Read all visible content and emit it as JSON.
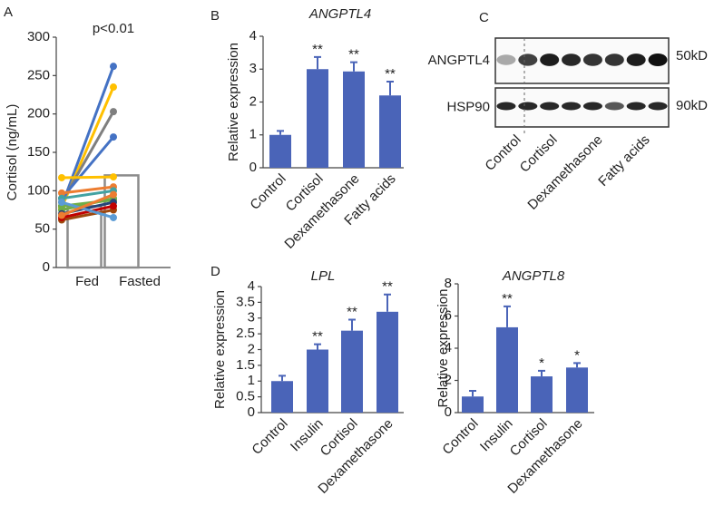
{
  "panel_labels": [
    "A",
    "B",
    "C",
    "D"
  ],
  "chart_data": [
    {
      "type": "paired",
      "annotation": "p<0.01",
      "y_label": "Cortisol (ng/mL)",
      "categories": [
        "Fed",
        "Fasted"
      ],
      "means": [
        80,
        120
      ],
      "bar_color": "#8c8c8c",
      "ylim": [
        0,
        300
      ],
      "yticks": [
        0,
        50,
        100,
        150,
        200,
        250,
        300
      ],
      "series": [
        {
          "color": "#4472c4",
          "values": [
            80,
            262
          ]
        },
        {
          "color": "#ffc000",
          "values": [
            78,
            235
          ]
        },
        {
          "color": "#7f7f7f",
          "values": [
            85,
            203
          ]
        },
        {
          "color": "#4472c4",
          "values": [
            90,
            170
          ]
        },
        {
          "color": "#ffc000",
          "values": [
            117,
            118
          ]
        },
        {
          "color": "#ed7d31",
          "values": [
            97,
            105
          ]
        },
        {
          "color": "#43a2a2",
          "values": [
            90,
            100
          ]
        },
        {
          "color": "#70ad47",
          "values": [
            80,
            88
          ]
        },
        {
          "color": "#70ad47",
          "values": [
            75,
            90
          ]
        },
        {
          "color": "#264478",
          "values": [
            70,
            85
          ]
        },
        {
          "color": "#9e480e",
          "values": [
            62,
            75
          ]
        },
        {
          "color": "#c00000",
          "values": [
            65,
            80
          ]
        },
        {
          "color": "#5b9bd5",
          "values": [
            85,
            65
          ]
        },
        {
          "color": "#ed7d31",
          "values": [
            68,
            95
          ]
        }
      ]
    },
    {
      "type": "bar",
      "title": "ANGPTL4",
      "y_label": "Relative expression",
      "color": "#4a64b8",
      "categories": [
        "Control",
        "Cortisol",
        "Dexamethasone",
        "Fatty acids"
      ],
      "values": [
        1,
        3,
        2.93,
        2.2
      ],
      "errors": [
        0.12,
        0.37,
        0.28,
        0.42
      ],
      "significance": [
        null,
        "**",
        "**",
        "**"
      ],
      "ylim": [
        0,
        4
      ],
      "yticks": [
        0,
        1,
        2,
        3,
        4
      ]
    },
    {
      "type": "bar",
      "title": "LPL",
      "y_label": "Relative expression",
      "color": "#4a64b8",
      "categories": [
        "Control",
        "Insulin",
        "Cortisol",
        "Dexamethasone"
      ],
      "values": [
        1,
        2,
        2.6,
        3.2
      ],
      "errors": [
        0.17,
        0.17,
        0.35,
        0.55
      ],
      "significance": [
        null,
        "**",
        "**",
        "**"
      ],
      "ylim": [
        0,
        4
      ],
      "yticks": [
        0,
        0.5,
        1,
        1.5,
        2,
        2.5,
        3,
        3.5,
        4
      ]
    },
    {
      "type": "bar",
      "title": "ANGPTL8",
      "y_label": "Relative expression",
      "color": "#4a64b8",
      "categories": [
        "Control",
        "Insulin",
        "Cortisol",
        "Dexamethasone"
      ],
      "values": [
        1,
        5.3,
        2.25,
        2.8
      ],
      "errors": [
        0.35,
        1.3,
        0.35,
        0.28
      ],
      "significance": [
        null,
        "**",
        "*",
        "*"
      ],
      "ylim": [
        0,
        8
      ],
      "yticks": [
        0,
        2,
        4,
        6,
        8
      ]
    }
  ],
  "blot": {
    "lanes": [
      "Control",
      "Cortisol",
      "Dexamethasone",
      "Fatty acids"
    ],
    "rows": [
      {
        "protein": "ANGPTL4",
        "size": "50kD"
      },
      {
        "protein": "HSP90",
        "size": "90kD"
      }
    ]
  }
}
